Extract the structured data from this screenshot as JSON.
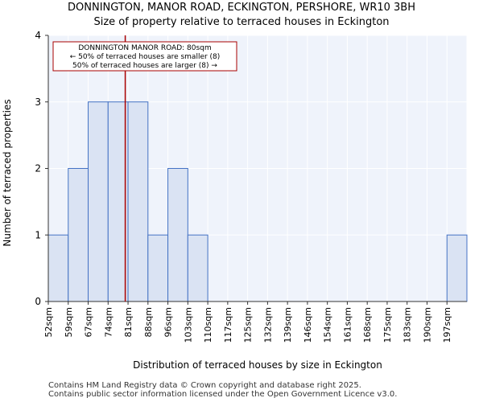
{
  "header": {
    "title_line1": "DONNINGTON, MANOR ROAD, ECKINGTON, PERSHORE, WR10 3BH",
    "title_line2": "Size of property relative to terraced houses in Eckington"
  },
  "footer": {
    "line1": "Contains HM Land Registry data © Crown copyright and database right 2025.",
    "line2": "Contains public sector information licensed under the Open Government Licence v3.0."
  },
  "chart_data": {
    "type": "bar",
    "title": "Size of property relative to terraced houses in Eckington",
    "xlabel": "Distribution of terraced houses by size in Eckington",
    "ylabel": "Number of terraced properties",
    "categories": [
      "52sqm",
      "59sqm",
      "67sqm",
      "74sqm",
      "81sqm",
      "88sqm",
      "96sqm",
      "103sqm",
      "110sqm",
      "117sqm",
      "125sqm",
      "132sqm",
      "139sqm",
      "146sqm",
      "154sqm",
      "161sqm",
      "168sqm",
      "175sqm",
      "183sqm",
      "190sqm",
      "197sqm"
    ],
    "values": [
      1,
      2,
      3,
      3,
      3,
      1,
      2,
      1,
      0,
      0,
      0,
      0,
      0,
      0,
      0,
      0,
      0,
      0,
      0,
      0,
      1
    ],
    "ylim": [
      0,
      4
    ],
    "yticks": [
      0,
      1,
      2,
      3,
      4
    ],
    "grid": true,
    "marker": {
      "position_index": 3.86,
      "color": "#aa0000",
      "annotation": {
        "line1": "DONNINGTON MANOR ROAD: 80sqm",
        "line2": "← 50% of terraced houses are smaller (8)",
        "line3": "50% of terraced houses are larger (8) →"
      }
    },
    "colors": {
      "bar_fill": "#dae3f3",
      "bar_edge": "#4472c4",
      "plot_bg": "#eff3fb",
      "grid": "#ffffff"
    }
  }
}
